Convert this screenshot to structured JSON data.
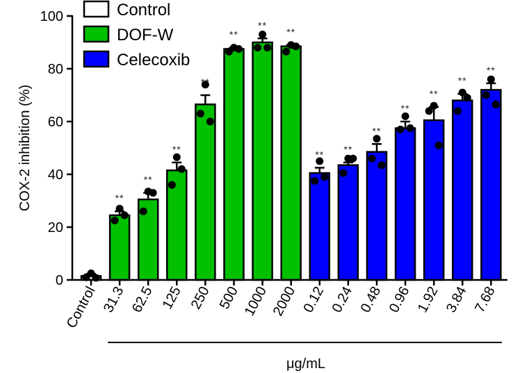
{
  "chart_data": {
    "type": "bar",
    "title": "",
    "xlabel": "μg/mL",
    "ylabel": "COX-2 inhibition  (%)",
    "ylim": [
      0,
      100
    ],
    "yticks": [
      0,
      20,
      40,
      60,
      80,
      100
    ],
    "categories": [
      "Control",
      "31.3",
      "62.5",
      "125",
      "250",
      "500",
      "1000",
      "2000",
      "0.12",
      "0.24",
      "0.48",
      "0.96",
      "1.92",
      "3.84",
      "7.68"
    ],
    "groups": [
      "Control",
      "DOF-W",
      "DOF-W",
      "DOF-W",
      "DOF-W",
      "DOF-W",
      "DOF-W",
      "DOF-W",
      "Celecoxib",
      "Celecoxib",
      "Celecoxib",
      "Celecoxib",
      "Celecoxib",
      "Celecoxib",
      "Celecoxib"
    ],
    "values": [
      1.5,
      24.5,
      30.5,
      41.5,
      66.5,
      87.5,
      90,
      88.5,
      40.5,
      43.5,
      48.5,
      57.5,
      60.5,
      68,
      72
    ],
    "errors": [
      0.8,
      1.5,
      2.5,
      3,
      3.5,
      0.5,
      1.5,
      0.5,
      2,
      1,
      3,
      2.5,
      5,
      2.5,
      2.5
    ],
    "points": [
      [
        2.5,
        1,
        0.8
      ],
      [
        27,
        22.5,
        24.5
      ],
      [
        33.5,
        26,
        33
      ],
      [
        46.5,
        36,
        42
      ],
      [
        74,
        63,
        60
      ],
      [
        88,
        86.5,
        87.5
      ],
      [
        93,
        88,
        88
      ],
      [
        89,
        86.5,
        88.5
      ],
      [
        45,
        37.5,
        39
      ],
      [
        46,
        40.5,
        46
      ],
      [
        53.5,
        46,
        43.5
      ],
      [
        62,
        57,
        57.5
      ],
      [
        66,
        64,
        51
      ],
      [
        71,
        64,
        69
      ],
      [
        76,
        70,
        66.5
      ]
    ],
    "significance": [
      "",
      "**",
      "**",
      "**",
      "**",
      "**",
      "**",
      "**",
      "**",
      "**",
      "**",
      "**",
      "**",
      "**",
      "**"
    ],
    "legend": {
      "position": "top-left",
      "entries": [
        {
          "label": "Control",
          "color": "#ffffff"
        },
        {
          "label": "DOF-W",
          "color": "#00c000"
        },
        {
          "label": "Celecoxib",
          "color": "#0000ff"
        }
      ]
    },
    "grid": false
  }
}
